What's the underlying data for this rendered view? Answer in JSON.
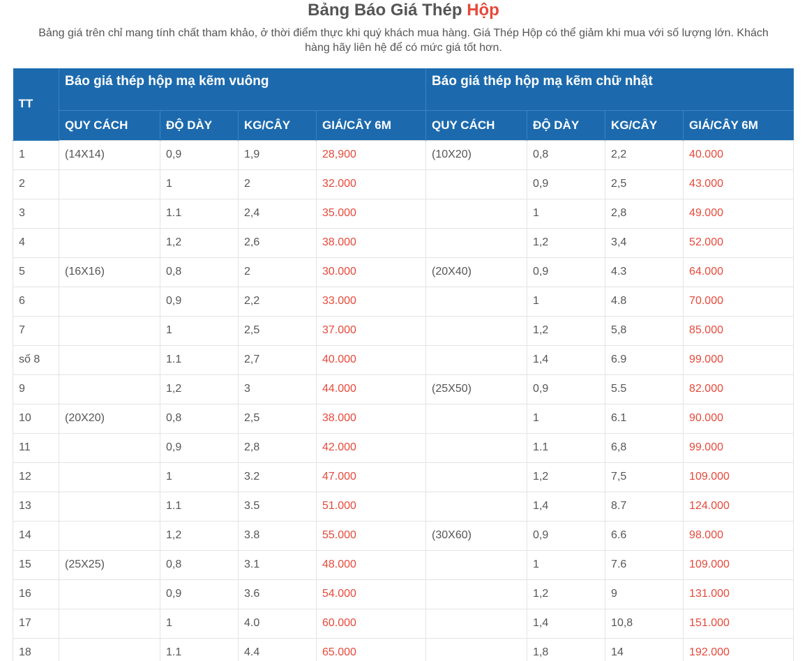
{
  "header": {
    "title_main": "Bảng Báo Giá Thép ",
    "title_accent": "Hộp",
    "subtitle": "Bảng giá trên chỉ mang tính chất tham khảo, ở thời điểm thực khi quý khách mua hàng. Giá Thép Hộp có thể giảm khi mua với số lượng lớn. Khách hàng hãy liên hệ để có mức giá tốt hơn."
  },
  "colors": {
    "header_bg": "#1c6aad",
    "price_text": "#e5493a"
  },
  "table": {
    "tt_label": "TT",
    "group_square": "Báo giá thép hộp mạ kẽm vuông",
    "group_rect": "Báo giá thép hộp mạ kẽm chữ nhật",
    "columns": [
      "QUY CÁCH",
      "ĐỘ DÀY",
      "KG/CÂY",
      "GIÁ/CÂY 6M",
      "QUY CÁCH",
      "ĐỘ DÀY",
      "KG/CÂY",
      "GIÁ/CÂY 6M"
    ],
    "rows": [
      [
        "1",
        "(14X14)",
        "0,9",
        "1,9",
        "28,900",
        "(10X20)",
        "0,8",
        "2,2",
        "40.000"
      ],
      [
        "2",
        "",
        "1",
        "2",
        "32.000",
        "",
        "0,9",
        "2,5",
        "43.000"
      ],
      [
        "3",
        "",
        "1.1",
        "2,4",
        "35.000",
        "",
        "1",
        "2,8",
        "49.000"
      ],
      [
        "4",
        "",
        "1,2",
        "2,6",
        "38.000",
        "",
        "1,2",
        "3,4",
        "52.000"
      ],
      [
        "5",
        "(16X16)",
        "0,8",
        "2",
        "30.000",
        "(20X40)",
        "0,9",
        "4.3",
        "64.000"
      ],
      [
        "6",
        "",
        "0,9",
        "2,2",
        "33.000",
        "",
        "1",
        "4.8",
        "70.000"
      ],
      [
        "7",
        "",
        "1",
        "2,5",
        "37.000",
        "",
        "1,2",
        "5,8",
        "85.000"
      ],
      [
        "số 8",
        "",
        "1.1",
        "2,7",
        "40.000",
        "",
        "1,4",
        "6.9",
        "99.000"
      ],
      [
        "9",
        "",
        "1,2",
        "3",
        "44.000",
        "(25X50)",
        "0,9",
        "5.5",
        "82.000"
      ],
      [
        "10",
        "(20X20)",
        "0,8",
        "2,5",
        "38.000",
        "",
        "1",
        "6.1",
        "90.000"
      ],
      [
        "11",
        "",
        "0,9",
        "2,8",
        "42.000",
        "",
        "1.1",
        "6,8",
        "99.000"
      ],
      [
        "12",
        "",
        "1",
        "3.2",
        "47.000",
        "",
        "1,2",
        "7,5",
        "109.000"
      ],
      [
        "13",
        "",
        "1.1",
        "3.5",
        "51.000",
        "",
        "1,4",
        "8.7",
        "124.000"
      ],
      [
        "14",
        "",
        "1,2",
        "3.8",
        "55.000",
        "(30X60)",
        "0,9",
        "6.6",
        "98.000"
      ],
      [
        "15",
        "(25X25)",
        "0,8",
        "3.1",
        "48.000",
        "",
        "1",
        "7.6",
        "109.000"
      ],
      [
        "16",
        "",
        "0,9",
        "3.6",
        "54.000",
        "",
        "1,2",
        "9",
        "131.000"
      ],
      [
        "17",
        "",
        "1",
        "4.0",
        "60.000",
        "",
        "1,4",
        "10,8",
        "151.000"
      ],
      [
        "18",
        "",
        "1.1",
        "4.4",
        "65.000",
        "",
        "1,8",
        "14",
        "192.000"
      ]
    ]
  }
}
